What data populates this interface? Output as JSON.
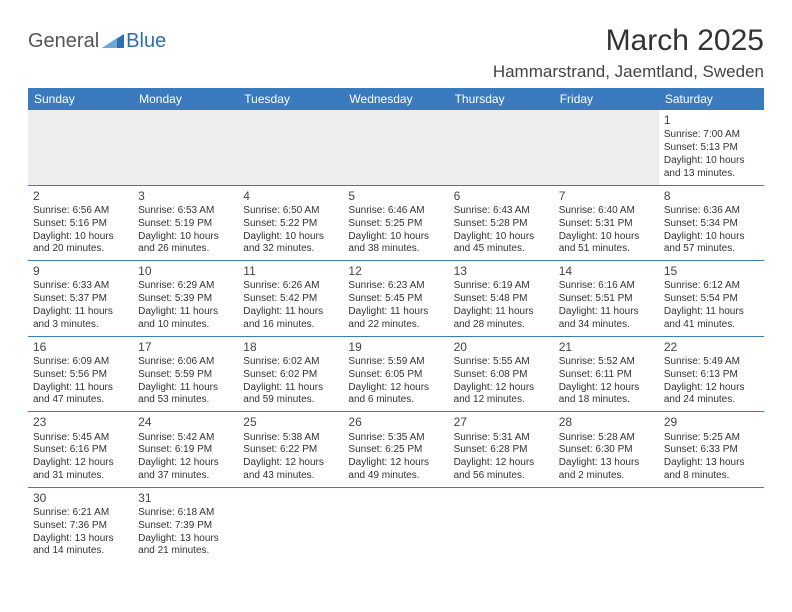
{
  "logo": {
    "text_general": "General",
    "text_blue": "Blue"
  },
  "header": {
    "month_title": "March 2025",
    "location": "Hammarstrand, Jaemtland, Sweden"
  },
  "colors": {
    "header_bg": "#3a7bbf",
    "header_text": "#ffffff",
    "row_border": "#3a7bbf",
    "blank_bg": "#eceded",
    "logo_blue": "#2e6fb0"
  },
  "day_names": [
    "Sunday",
    "Monday",
    "Tuesday",
    "Wednesday",
    "Thursday",
    "Friday",
    "Saturday"
  ],
  "weeks": [
    [
      null,
      null,
      null,
      null,
      null,
      null,
      {
        "n": "1",
        "sr": "Sunrise: 7:00 AM",
        "ss": "Sunset: 5:13 PM",
        "dl1": "Daylight: 10 hours",
        "dl2": "and 13 minutes."
      }
    ],
    [
      {
        "n": "2",
        "sr": "Sunrise: 6:56 AM",
        "ss": "Sunset: 5:16 PM",
        "dl1": "Daylight: 10 hours",
        "dl2": "and 20 minutes."
      },
      {
        "n": "3",
        "sr": "Sunrise: 6:53 AM",
        "ss": "Sunset: 5:19 PM",
        "dl1": "Daylight: 10 hours",
        "dl2": "and 26 minutes."
      },
      {
        "n": "4",
        "sr": "Sunrise: 6:50 AM",
        "ss": "Sunset: 5:22 PM",
        "dl1": "Daylight: 10 hours",
        "dl2": "and 32 minutes."
      },
      {
        "n": "5",
        "sr": "Sunrise: 6:46 AM",
        "ss": "Sunset: 5:25 PM",
        "dl1": "Daylight: 10 hours",
        "dl2": "and 38 minutes."
      },
      {
        "n": "6",
        "sr": "Sunrise: 6:43 AM",
        "ss": "Sunset: 5:28 PM",
        "dl1": "Daylight: 10 hours",
        "dl2": "and 45 minutes."
      },
      {
        "n": "7",
        "sr": "Sunrise: 6:40 AM",
        "ss": "Sunset: 5:31 PM",
        "dl1": "Daylight: 10 hours",
        "dl2": "and 51 minutes."
      },
      {
        "n": "8",
        "sr": "Sunrise: 6:36 AM",
        "ss": "Sunset: 5:34 PM",
        "dl1": "Daylight: 10 hours",
        "dl2": "and 57 minutes."
      }
    ],
    [
      {
        "n": "9",
        "sr": "Sunrise: 6:33 AM",
        "ss": "Sunset: 5:37 PM",
        "dl1": "Daylight: 11 hours",
        "dl2": "and 3 minutes."
      },
      {
        "n": "10",
        "sr": "Sunrise: 6:29 AM",
        "ss": "Sunset: 5:39 PM",
        "dl1": "Daylight: 11 hours",
        "dl2": "and 10 minutes."
      },
      {
        "n": "11",
        "sr": "Sunrise: 6:26 AM",
        "ss": "Sunset: 5:42 PM",
        "dl1": "Daylight: 11 hours",
        "dl2": "and 16 minutes."
      },
      {
        "n": "12",
        "sr": "Sunrise: 6:23 AM",
        "ss": "Sunset: 5:45 PM",
        "dl1": "Daylight: 11 hours",
        "dl2": "and 22 minutes."
      },
      {
        "n": "13",
        "sr": "Sunrise: 6:19 AM",
        "ss": "Sunset: 5:48 PM",
        "dl1": "Daylight: 11 hours",
        "dl2": "and 28 minutes."
      },
      {
        "n": "14",
        "sr": "Sunrise: 6:16 AM",
        "ss": "Sunset: 5:51 PM",
        "dl1": "Daylight: 11 hours",
        "dl2": "and 34 minutes."
      },
      {
        "n": "15",
        "sr": "Sunrise: 6:12 AM",
        "ss": "Sunset: 5:54 PM",
        "dl1": "Daylight: 11 hours",
        "dl2": "and 41 minutes."
      }
    ],
    [
      {
        "n": "16",
        "sr": "Sunrise: 6:09 AM",
        "ss": "Sunset: 5:56 PM",
        "dl1": "Daylight: 11 hours",
        "dl2": "and 47 minutes."
      },
      {
        "n": "17",
        "sr": "Sunrise: 6:06 AM",
        "ss": "Sunset: 5:59 PM",
        "dl1": "Daylight: 11 hours",
        "dl2": "and 53 minutes."
      },
      {
        "n": "18",
        "sr": "Sunrise: 6:02 AM",
        "ss": "Sunset: 6:02 PM",
        "dl1": "Daylight: 11 hours",
        "dl2": "and 59 minutes."
      },
      {
        "n": "19",
        "sr": "Sunrise: 5:59 AM",
        "ss": "Sunset: 6:05 PM",
        "dl1": "Daylight: 12 hours",
        "dl2": "and 6 minutes."
      },
      {
        "n": "20",
        "sr": "Sunrise: 5:55 AM",
        "ss": "Sunset: 6:08 PM",
        "dl1": "Daylight: 12 hours",
        "dl2": "and 12 minutes."
      },
      {
        "n": "21",
        "sr": "Sunrise: 5:52 AM",
        "ss": "Sunset: 6:11 PM",
        "dl1": "Daylight: 12 hours",
        "dl2": "and 18 minutes."
      },
      {
        "n": "22",
        "sr": "Sunrise: 5:49 AM",
        "ss": "Sunset: 6:13 PM",
        "dl1": "Daylight: 12 hours",
        "dl2": "and 24 minutes."
      }
    ],
    [
      {
        "n": "23",
        "sr": "Sunrise: 5:45 AM",
        "ss": "Sunset: 6:16 PM",
        "dl1": "Daylight: 12 hours",
        "dl2": "and 31 minutes."
      },
      {
        "n": "24",
        "sr": "Sunrise: 5:42 AM",
        "ss": "Sunset: 6:19 PM",
        "dl1": "Daylight: 12 hours",
        "dl2": "and 37 minutes."
      },
      {
        "n": "25",
        "sr": "Sunrise: 5:38 AM",
        "ss": "Sunset: 6:22 PM",
        "dl1": "Daylight: 12 hours",
        "dl2": "and 43 minutes."
      },
      {
        "n": "26",
        "sr": "Sunrise: 5:35 AM",
        "ss": "Sunset: 6:25 PM",
        "dl1": "Daylight: 12 hours",
        "dl2": "and 49 minutes."
      },
      {
        "n": "27",
        "sr": "Sunrise: 5:31 AM",
        "ss": "Sunset: 6:28 PM",
        "dl1": "Daylight: 12 hours",
        "dl2": "and 56 minutes."
      },
      {
        "n": "28",
        "sr": "Sunrise: 5:28 AM",
        "ss": "Sunset: 6:30 PM",
        "dl1": "Daylight: 13 hours",
        "dl2": "and 2 minutes."
      },
      {
        "n": "29",
        "sr": "Sunrise: 5:25 AM",
        "ss": "Sunset: 6:33 PM",
        "dl1": "Daylight: 13 hours",
        "dl2": "and 8 minutes."
      }
    ],
    [
      {
        "n": "30",
        "sr": "Sunrise: 6:21 AM",
        "ss": "Sunset: 7:36 PM",
        "dl1": "Daylight: 13 hours",
        "dl2": "and 14 minutes."
      },
      {
        "n": "31",
        "sr": "Sunrise: 6:18 AM",
        "ss": "Sunset: 7:39 PM",
        "dl1": "Daylight: 13 hours",
        "dl2": "and 21 minutes."
      },
      null,
      null,
      null,
      null,
      null
    ]
  ]
}
